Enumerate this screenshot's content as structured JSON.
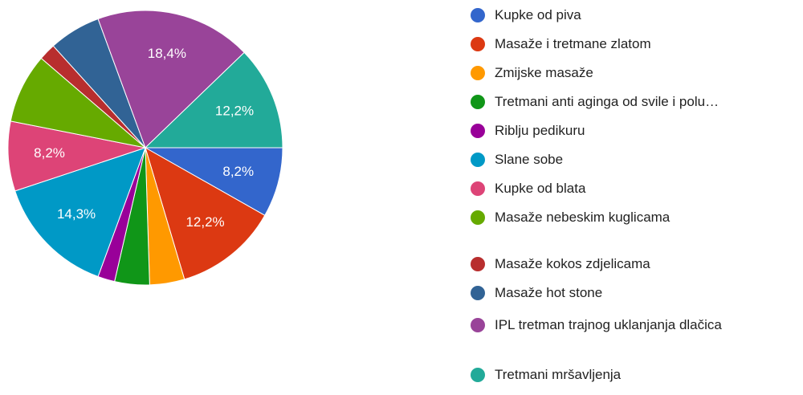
{
  "chart_data": {
    "type": "pie",
    "categories": [
      "Kupke od piva",
      "Masaže i tretmane zlatom",
      "Zmijske masaže",
      "Tretmani anti aginga od svile i polu…",
      "Riblju pedikuru",
      "Slane sobe",
      "Kupke od blata",
      "Masaže nebeskim kuglicama",
      "Masaže kokos zdjelicama",
      "Masaže hot stone",
      "IPL tretman trajnog uklanjanja dlačica",
      "Tretmani mršavljenja"
    ],
    "values": [
      8.2,
      12.2,
      4.1,
      4.1,
      2.0,
      14.3,
      8.2,
      8.2,
      2.0,
      6.1,
      18.4,
      12.2
    ],
    "value_labels": [
      "8,2%",
      "12,2%",
      null,
      null,
      null,
      "14,3%",
      "8,2%",
      null,
      null,
      null,
      "18,4%",
      "12,2%"
    ],
    "colors": [
      "#3366cc",
      "#dc3912",
      "#ff9900",
      "#109618",
      "#990099",
      "#0099c6",
      "#dd4477",
      "#66aa00",
      "#b82e2e",
      "#316395",
      "#994499",
      "#22aa99"
    ]
  }
}
